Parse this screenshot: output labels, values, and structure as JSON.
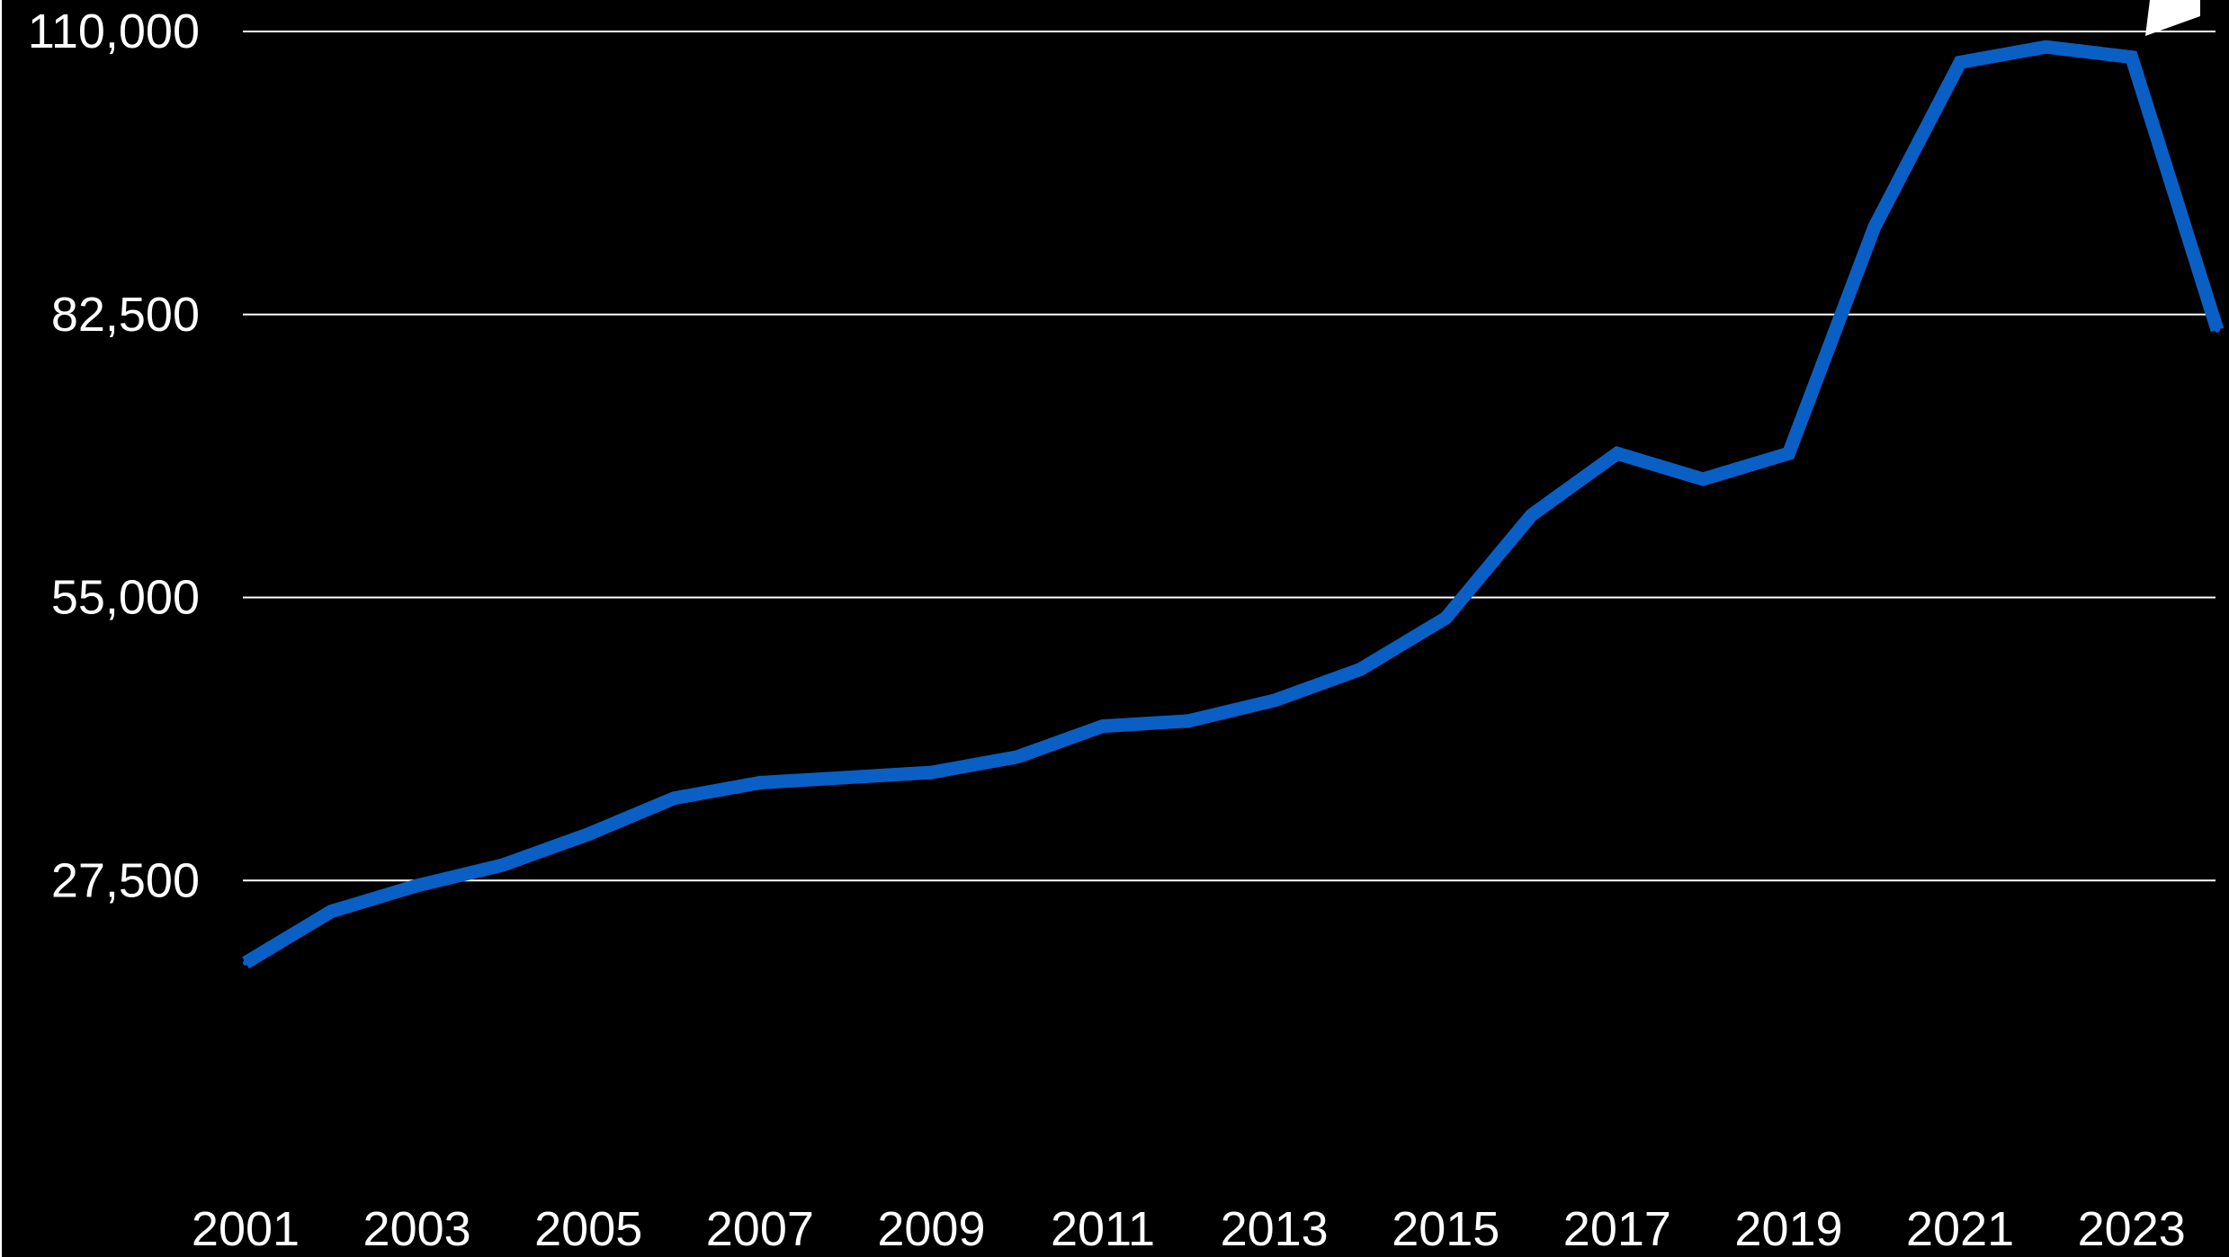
{
  "chart_data": {
    "type": "line",
    "title": "",
    "xlabel": "",
    "ylabel": "",
    "x": [
      2001,
      2002,
      2003,
      2004,
      2005,
      2006,
      2007,
      2008,
      2009,
      2010,
      2011,
      2012,
      2013,
      2014,
      2015,
      2016,
      2017,
      2018,
      2019,
      2020,
      2021,
      2022,
      2023,
      2024
    ],
    "series": [
      {
        "color": "#0a5fc4",
        "values": [
          19500,
          24500,
          27000,
          29000,
          32000,
          35500,
          37000,
          37500,
          38000,
          39500,
          42500,
          43000,
          45000,
          48000,
          53000,
          63000,
          69000,
          66500,
          69000,
          91000,
          107000,
          108500,
          107500,
          81000
        ]
      }
    ],
    "xlim": [
      2001,
      2024
    ],
    "ylim": [
      0,
      110000
    ],
    "y_ticks": [
      "27,500",
      "55,000",
      "82,500",
      "110,000"
    ],
    "y_tick_values": [
      27500,
      55000,
      82500,
      110000
    ],
    "x_ticks": [
      "2001",
      "2003",
      "2005",
      "2007",
      "2009",
      "2011",
      "2013",
      "2015",
      "2017",
      "2019",
      "2021",
      "2023"
    ],
    "x_tick_values": [
      2001,
      2003,
      2005,
      2007,
      2009,
      2011,
      2013,
      2015,
      2017,
      2019,
      2021,
      2023
    ],
    "grid": "horizontal",
    "legend": "none",
    "colors": {
      "background": "#000000",
      "grid": "#ffffff",
      "text": "#ffffff",
      "line": "#0a5fc4"
    }
  }
}
